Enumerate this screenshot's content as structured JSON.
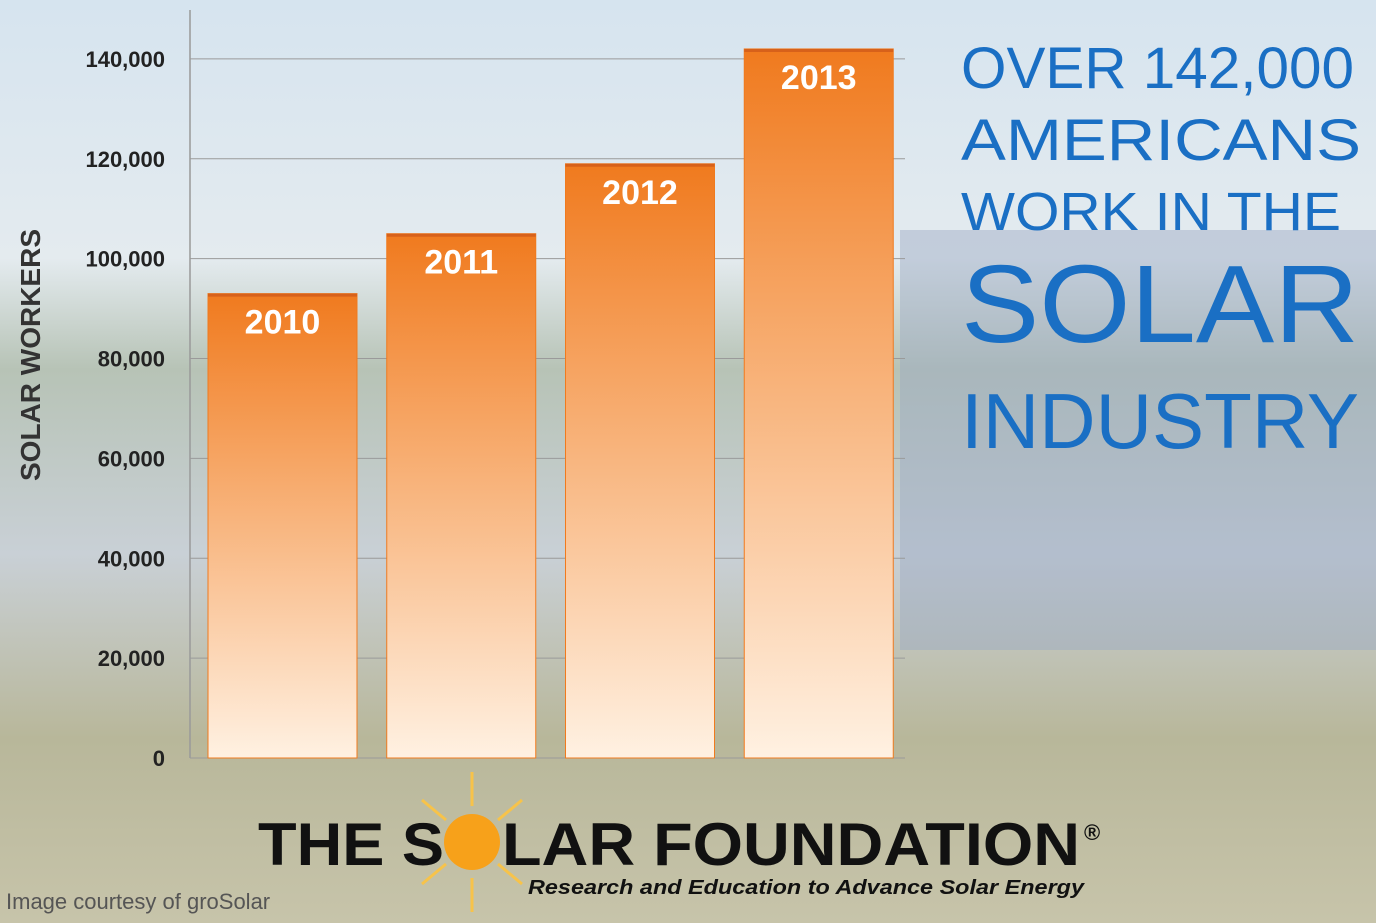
{
  "chart_data": {
    "type": "bar",
    "title_lines": [
      "OVER 142,000",
      "AMERICANS",
      "WORK IN THE",
      "SOLAR",
      "INDUSTRY"
    ],
    "ylabel": "SOLAR WORKERS",
    "categories": [
      "2010",
      "2011",
      "2012",
      "2013"
    ],
    "values": [
      93000,
      105000,
      119000,
      142000
    ],
    "color": "#f07a1e",
    "ylim": [
      0,
      150000
    ],
    "yticks": [
      0,
      {
        "value": 20000,
        "label": "20,000"
      },
      {
        "value": 40000,
        "label": "40,000"
      },
      {
        "value": 60000,
        "label": "60,000"
      },
      {
        "value": 80000,
        "label": "80,000"
      },
      {
        "value": 100000,
        "label": "100,000"
      },
      {
        "value": 120000,
        "label": "120,000"
      },
      {
        "value": 140000,
        "label": "140,000"
      }
    ],
    "grid": true
  },
  "logo": {
    "left": "THE S",
    "right": "LAR FOUNDATION",
    "mark": "®",
    "tagline": "Research and Education to Advance Solar Energy"
  },
  "credit": "Image courtesy of groSolar"
}
